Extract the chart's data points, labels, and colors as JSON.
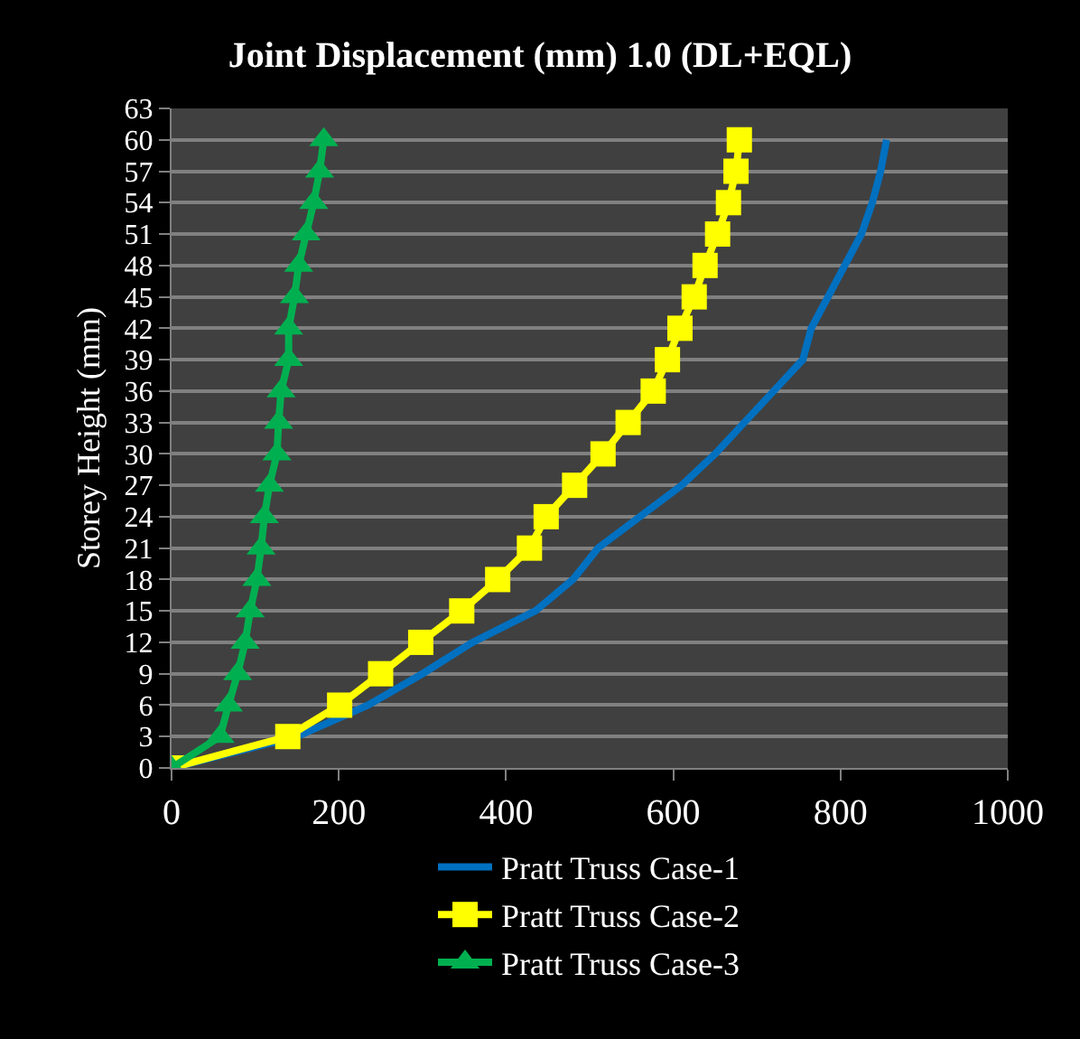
{
  "chart_data": {
    "type": "line",
    "title": "Joint Displacement (mm) 1.0 (DL+EQL)",
    "ylabel": "Storey Height (mm)",
    "x": [
      0,
      3,
      6,
      9,
      12,
      15,
      18,
      21,
      24,
      27,
      30,
      33,
      36,
      39,
      42,
      45,
      48,
      51,
      54,
      57,
      60
    ],
    "orientation": "horizontal",
    "series": [
      {
        "name": "Pratt Truss Case-1",
        "color": "#0070c0",
        "marker": "none",
        "values": [
          0,
          150,
          235,
          300,
          360,
          435,
          480,
          510,
          560,
          610,
          650,
          685,
          720,
          755,
          765,
          785,
          805,
          825,
          838,
          848,
          855
        ]
      },
      {
        "name": "Pratt Truss Case-2",
        "color": "#ffff00",
        "marker": "square",
        "values": [
          0,
          139,
          201,
          250,
          298,
          347,
          390,
          428,
          448,
          482,
          516,
          546,
          576,
          593,
          608,
          625,
          638,
          653,
          666,
          675,
          679
        ]
      },
      {
        "name": "Pratt Truss Case-3",
        "color": "#00b050",
        "marker": "triangle",
        "values": [
          0,
          58,
          68,
          79,
          88,
          94,
          102,
          107,
          111,
          117,
          126,
          128,
          131,
          140,
          140,
          147,
          152,
          161,
          170,
          177,
          182
        ]
      }
    ],
    "xlim": [
      0,
      1000
    ],
    "xticks": [
      0,
      200,
      400,
      600,
      800,
      1000
    ],
    "ylim": [
      0,
      63
    ],
    "yticks": [
      0,
      3,
      6,
      9,
      12,
      15,
      18,
      21,
      24,
      27,
      30,
      33,
      36,
      39,
      42,
      45,
      48,
      51,
      54,
      57,
      60,
      63
    ],
    "grid": "y",
    "legend": "bottom"
  }
}
